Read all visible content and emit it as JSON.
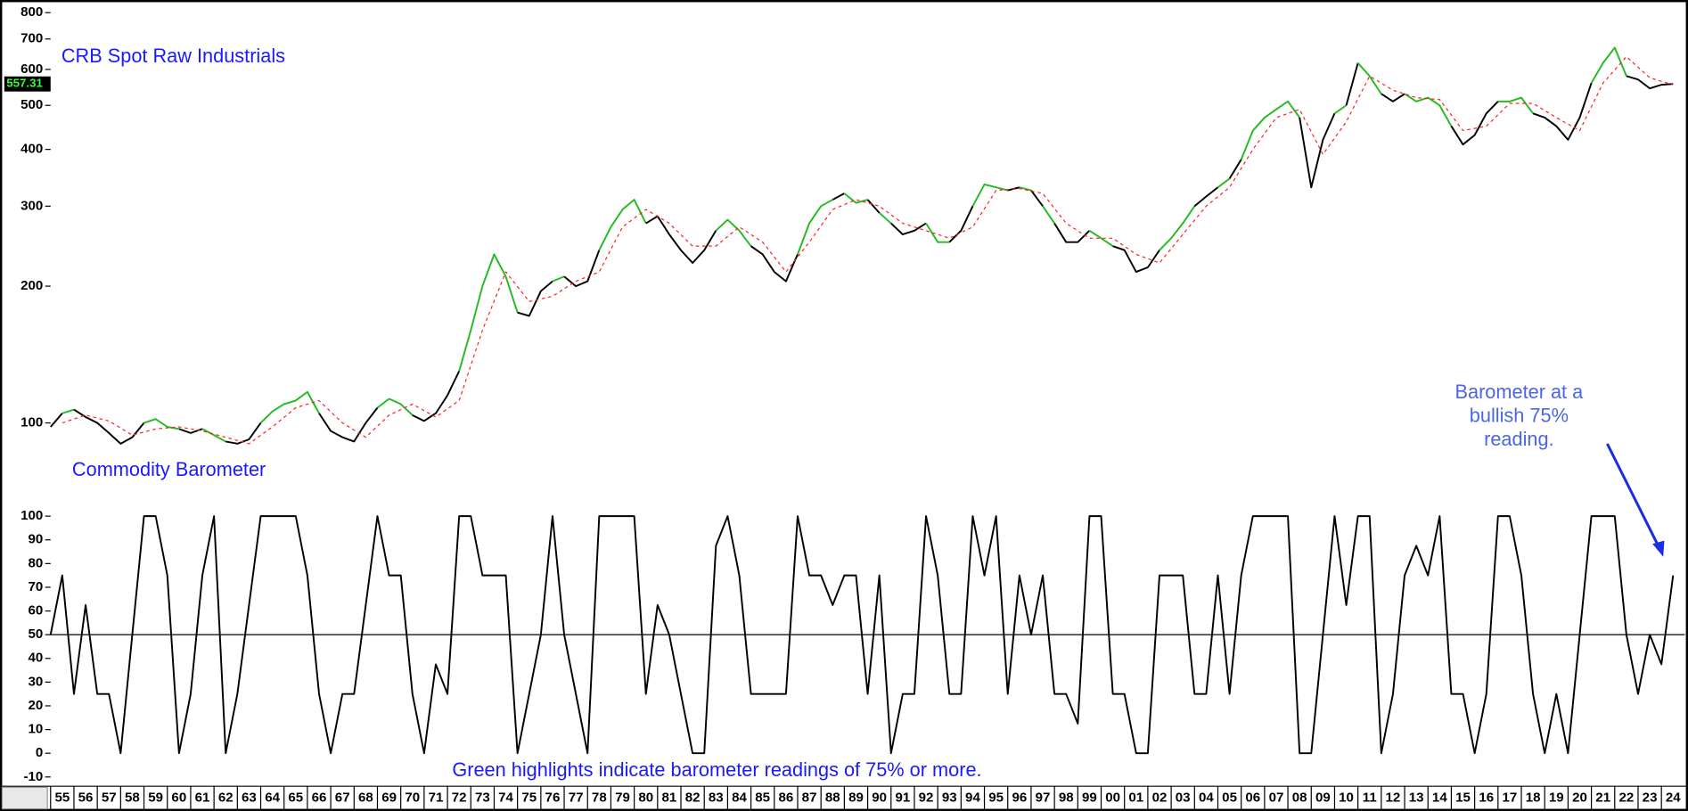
{
  "chart_data": [
    {
      "type": "line",
      "title": "CRB Spot Raw Industrials",
      "log_scale": true,
      "ylim": [
        70,
        830
      ],
      "yticks": [
        100,
        200,
        300,
        400,
        500,
        600,
        700,
        800
      ],
      "xlim": [
        1955,
        2025
      ],
      "current_value": 557.31,
      "x": [
        1955,
        1955.5,
        1956,
        1956.5,
        1957,
        1957.5,
        1958,
        1958.5,
        1959,
        1959.5,
        1960,
        1960.5,
        1961,
        1961.5,
        1962,
        1962.5,
        1963,
        1963.5,
        1964,
        1964.5,
        1965,
        1965.5,
        1966,
        1966.5,
        1967,
        1967.5,
        1968,
        1968.5,
        1969,
        1969.5,
        1970,
        1970.5,
        1971,
        1971.5,
        1972,
        1972.5,
        1973,
        1973.5,
        1974,
        1974.5,
        1975,
        1975.5,
        1976,
        1976.5,
        1977,
        1977.5,
        1978,
        1978.5,
        1979,
        1979.5,
        1980,
        1980.5,
        1981,
        1981.5,
        1982,
        1982.5,
        1983,
        1983.5,
        1984,
        1984.5,
        1985,
        1985.5,
        1986,
        1986.5,
        1987,
        1987.5,
        1988,
        1988.5,
        1989,
        1989.5,
        1990,
        1990.5,
        1991,
        1991.5,
        1992,
        1992.5,
        1993,
        1993.5,
        1994,
        1994.5,
        1995,
        1995.5,
        1996,
        1996.5,
        1997,
        1997.5,
        1998,
        1998.5,
        1999,
        1999.5,
        2000,
        2000.5,
        2001,
        2001.5,
        2002,
        2002.5,
        2003,
        2003.5,
        2004,
        2004.5,
        2005,
        2005.5,
        2006,
        2006.5,
        2007,
        2007.5,
        2008,
        2008.5,
        2009,
        2009.5,
        2010,
        2010.5,
        2011,
        2011.5,
        2012,
        2012.5,
        2013,
        2013.5,
        2014,
        2014.5,
        2015,
        2015.5,
        2016,
        2016.5,
        2017,
        2017.5,
        2018,
        2018.5,
        2019,
        2019.5,
        2020,
        2020.5,
        2021,
        2021.5,
        2022,
        2022.5,
        2023,
        2023.5,
        2024,
        2024.5
      ],
      "series": [
        {
          "color": "#000000",
          "highlight_color": "#22bb22",
          "highlight_threshold": 75,
          "values": [
            98,
            105,
            107,
            103,
            100,
            95,
            90,
            93,
            100,
            102,
            98,
            97,
            95,
            97,
            94,
            91,
            90,
            92,
            100,
            106,
            110,
            112,
            117,
            105,
            96,
            93,
            91,
            100,
            108,
            113,
            110,
            104,
            101,
            105,
            115,
            130,
            160,
            200,
            235,
            210,
            175,
            172,
            195,
            205,
            210,
            200,
            205,
            240,
            270,
            295,
            310,
            275,
            285,
            260,
            240,
            225,
            240,
            265,
            280,
            265,
            245,
            235,
            215,
            205,
            235,
            275,
            300,
            310,
            320,
            305,
            310,
            290,
            275,
            260,
            265,
            275,
            250,
            250,
            265,
            300,
            335,
            330,
            325,
            330,
            325,
            300,
            275,
            250,
            250,
            265,
            255,
            245,
            240,
            215,
            220,
            240,
            255,
            275,
            300,
            315,
            330,
            345,
            380,
            440,
            470,
            490,
            510,
            470,
            330,
            420,
            480,
            500,
            620,
            580,
            530,
            510,
            530,
            510,
            520,
            500,
            450,
            410,
            430,
            480,
            510,
            510,
            520,
            480,
            470,
            450,
            420,
            470,
            560,
            620,
            670,
            580,
            570,
            545,
            555,
            557.31
          ]
        },
        {
          "color": "#ff2020",
          "line_style": "dashed",
          "x": [
            1955.5,
            1956.5,
            1957.5,
            1958.5,
            1959.5,
            1960.5,
            1961.5,
            1962.5,
            1963.5,
            1964.5,
            1965.5,
            1966.5,
            1967.5,
            1968.5,
            1969.5,
            1970.5,
            1971.5,
            1972.5,
            1973.5,
            1974.5,
            1975.5,
            1976.5,
            1977.5,
            1978.5,
            1979.5,
            1980.5,
            1981.5,
            1982.5,
            1983.5,
            1984.5,
            1985.5,
            1986.5,
            1987.5,
            1988.5,
            1989.5,
            1990.5,
            1991.5,
            1992.5,
            1993.5,
            1994.5,
            1995.5,
            1996.5,
            1997.5,
            1998.5,
            1999.5,
            2000.5,
            2001.5,
            2002.5,
            2003.5,
            2004.5,
            2005.5,
            2006.5,
            2007.5,
            2008.5,
            2009.5,
            2010.5,
            2011.5,
            2012.5,
            2013.5,
            2014.5,
            2015.5,
            2016.5,
            2017.5,
            2018.5,
            2019.5,
            2020.5,
            2021.5,
            2022.5,
            2023.5,
            2024.5
          ],
          "values": [
            100,
            104,
            101,
            94,
            97,
            98,
            96,
            93,
            90,
            98,
            108,
            112,
            100,
            93,
            104,
            110,
            103,
            112,
            160,
            215,
            185,
            190,
            205,
            215,
            270,
            295,
            275,
            245,
            245,
            270,
            250,
            215,
            250,
            295,
            310,
            300,
            275,
            265,
            255,
            270,
            325,
            328,
            320,
            275,
            255,
            255,
            235,
            225,
            260,
            300,
            330,
            400,
            470,
            490,
            390,
            460,
            580,
            540,
            520,
            515,
            440,
            450,
            505,
            505,
            470,
            440,
            560,
            640,
            575,
            555
          ]
        }
      ]
    },
    {
      "type": "line",
      "title": "Commodity Barometer",
      "note": "Green  highlights indicate barometer readings of 75% or more.",
      "callout": [
        "Barometer at a",
        "bullish 75%",
        "reading."
      ],
      "ylim": [
        -13,
        106
      ],
      "yticks": [
        -10,
        0,
        10,
        20,
        30,
        40,
        50,
        60,
        70,
        80,
        90,
        100
      ],
      "reference_line": 50,
      "xlim": [
        1955,
        2025
      ],
      "xticks": [
        {
          "value": 1955,
          "label": "55"
        },
        {
          "value": 1956,
          "label": "56"
        },
        {
          "value": 1957,
          "label": "57"
        },
        {
          "value": 1958,
          "label": "58"
        },
        {
          "value": 1959,
          "label": "59"
        },
        {
          "value": 1960,
          "label": "60"
        },
        {
          "value": 1961,
          "label": "61"
        },
        {
          "value": 1962,
          "label": "62"
        },
        {
          "value": 1963,
          "label": "63"
        },
        {
          "value": 1964,
          "label": "64"
        },
        {
          "value": 1965,
          "label": "65"
        },
        {
          "value": 1966,
          "label": "66"
        },
        {
          "value": 1967,
          "label": "67"
        },
        {
          "value": 1968,
          "label": "68"
        },
        {
          "value": 1969,
          "label": "69"
        },
        {
          "value": 1970,
          "label": "70"
        },
        {
          "value": 1971,
          "label": "71"
        },
        {
          "value": 1972,
          "label": "72"
        },
        {
          "value": 1973,
          "label": "73"
        },
        {
          "value": 1974,
          "label": "74"
        },
        {
          "value": 1975,
          "label": "75"
        },
        {
          "value": 1976,
          "label": "76"
        },
        {
          "value": 1977,
          "label": "77"
        },
        {
          "value": 1978,
          "label": "78"
        },
        {
          "value": 1979,
          "label": "79"
        },
        {
          "value": 1980,
          "label": "80"
        },
        {
          "value": 1981,
          "label": "81"
        },
        {
          "value": 1982,
          "label": "82"
        },
        {
          "value": 1983,
          "label": "83"
        },
        {
          "value": 1984,
          "label": "84"
        },
        {
          "value": 1985,
          "label": "85"
        },
        {
          "value": 1986,
          "label": "86"
        },
        {
          "value": 1987,
          "label": "87"
        },
        {
          "value": 1988,
          "label": "88"
        },
        {
          "value": 1989,
          "label": "89"
        },
        {
          "value": 1990,
          "label": "90"
        },
        {
          "value": 1991,
          "label": "91"
        },
        {
          "value": 1992,
          "label": "92"
        },
        {
          "value": 1993,
          "label": "93"
        },
        {
          "value": 1994,
          "label": "94"
        },
        {
          "value": 1995,
          "label": "95"
        },
        {
          "value": 1996,
          "label": "96"
        },
        {
          "value": 1997,
          "label": "97"
        },
        {
          "value": 1998,
          "label": "98"
        },
        {
          "value": 1999,
          "label": "99"
        },
        {
          "value": 2000,
          "label": "00"
        },
        {
          "value": 2001,
          "label": "01"
        },
        {
          "value": 2002,
          "label": "02"
        },
        {
          "value": 2003,
          "label": "03"
        },
        {
          "value": 2004,
          "label": "04"
        },
        {
          "value": 2005,
          "label": "05"
        },
        {
          "value": 2006,
          "label": "06"
        },
        {
          "value": 2007,
          "label": "07"
        },
        {
          "value": 2008,
          "label": "08"
        },
        {
          "value": 2009,
          "label": "09"
        },
        {
          "value": 2010,
          "label": "10"
        },
        {
          "value": 2011,
          "label": "11"
        },
        {
          "value": 2012,
          "label": "12"
        },
        {
          "value": 2013,
          "label": "13"
        },
        {
          "value": 2014,
          "label": "14"
        },
        {
          "value": 2015,
          "label": "15"
        },
        {
          "value": 2016,
          "label": "16"
        },
        {
          "value": 2017,
          "label": "17"
        },
        {
          "value": 2018,
          "label": "18"
        },
        {
          "value": 2019,
          "label": "19"
        },
        {
          "value": 2020,
          "label": "20"
        },
        {
          "value": 2021,
          "label": "21"
        },
        {
          "value": 2022,
          "label": "22"
        },
        {
          "value": 2023,
          "label": "23"
        },
        {
          "value": 2024,
          "label": "24"
        }
      ],
      "x": [
        1955,
        1955.5,
        1956,
        1956.5,
        1957,
        1957.5,
        1958,
        1958.5,
        1959,
        1959.5,
        1960,
        1960.5,
        1961,
        1961.5,
        1962,
        1962.5,
        1963,
        1963.5,
        1964,
        1964.5,
        1965,
        1965.5,
        1966,
        1966.5,
        1967,
        1967.5,
        1968,
        1968.5,
        1969,
        1969.5,
        1970,
        1970.5,
        1971,
        1971.5,
        1972,
        1972.5,
        1973,
        1973.5,
        1974,
        1974.5,
        1975,
        1975.5,
        1976,
        1976.5,
        1977,
        1977.5,
        1978,
        1978.5,
        1979,
        1979.5,
        1980,
        1980.5,
        1981,
        1981.5,
        1982,
        1982.5,
        1983,
        1983.5,
        1984,
        1984.5,
        1985,
        1985.5,
        1986,
        1986.5,
        1987,
        1987.5,
        1988,
        1988.5,
        1989,
        1989.5,
        1990,
        1990.5,
        1991,
        1991.5,
        1992,
        1992.5,
        1993,
        1993.5,
        1994,
        1994.5,
        1995,
        1995.5,
        1996,
        1996.5,
        1997,
        1997.5,
        1998,
        1998.5,
        1999,
        1999.5,
        2000,
        2000.5,
        2001,
        2001.5,
        2002,
        2002.5,
        2003,
        2003.5,
        2004,
        2004.5,
        2005,
        2005.5,
        2006,
        2006.5,
        2007,
        2007.5,
        2008,
        2008.5,
        2009,
        2009.5,
        2010,
        2010.5,
        2011,
        2011.5,
        2012,
        2012.5,
        2013,
        2013.5,
        2014,
        2014.5,
        2015,
        2015.5,
        2016,
        2016.5,
        2017,
        2017.5,
        2018,
        2018.5,
        2019,
        2019.5,
        2020,
        2020.5,
        2021,
        2021.5,
        2022,
        2022.5,
        2023,
        2023.5,
        2024,
        2024.5
      ],
      "series": [
        {
          "color": "#000000",
          "values": [
            50,
            75,
            25,
            62.5,
            25,
            25,
            0,
            50,
            100,
            100,
            75,
            0,
            25,
            75,
            100,
            0,
            25,
            62.5,
            100,
            100,
            100,
            100,
            75,
            25,
            0,
            25,
            25,
            62.5,
            100,
            75,
            75,
            25,
            0,
            37.5,
            25,
            100,
            100,
            75,
            75,
            75,
            0,
            25,
            50,
            100,
            50,
            25,
            0,
            100,
            100,
            100,
            100,
            25,
            62.5,
            50,
            25,
            0,
            0,
            87.5,
            100,
            75,
            25,
            25,
            25,
            25,
            100,
            75,
            75,
            62.5,
            75,
            75,
            25,
            75,
            0,
            25,
            25,
            100,
            75,
            25,
            25,
            100,
            75,
            100,
            25,
            75,
            50,
            75,
            25,
            25,
            12.5,
            100,
            100,
            25,
            25,
            0,
            0,
            75,
            75,
            75,
            25,
            25,
            75,
            25,
            75,
            100,
            100,
            100,
            100,
            0,
            0,
            50,
            100,
            62.5,
            100,
            100,
            0,
            25,
            75,
            87.5,
            75,
            100,
            25,
            25,
            0,
            25,
            100,
            100,
            75,
            25,
            0,
            25,
            0,
            50,
            100,
            100,
            100,
            50,
            25,
            50,
            37.5,
            75
          ]
        }
      ]
    }
  ]
}
